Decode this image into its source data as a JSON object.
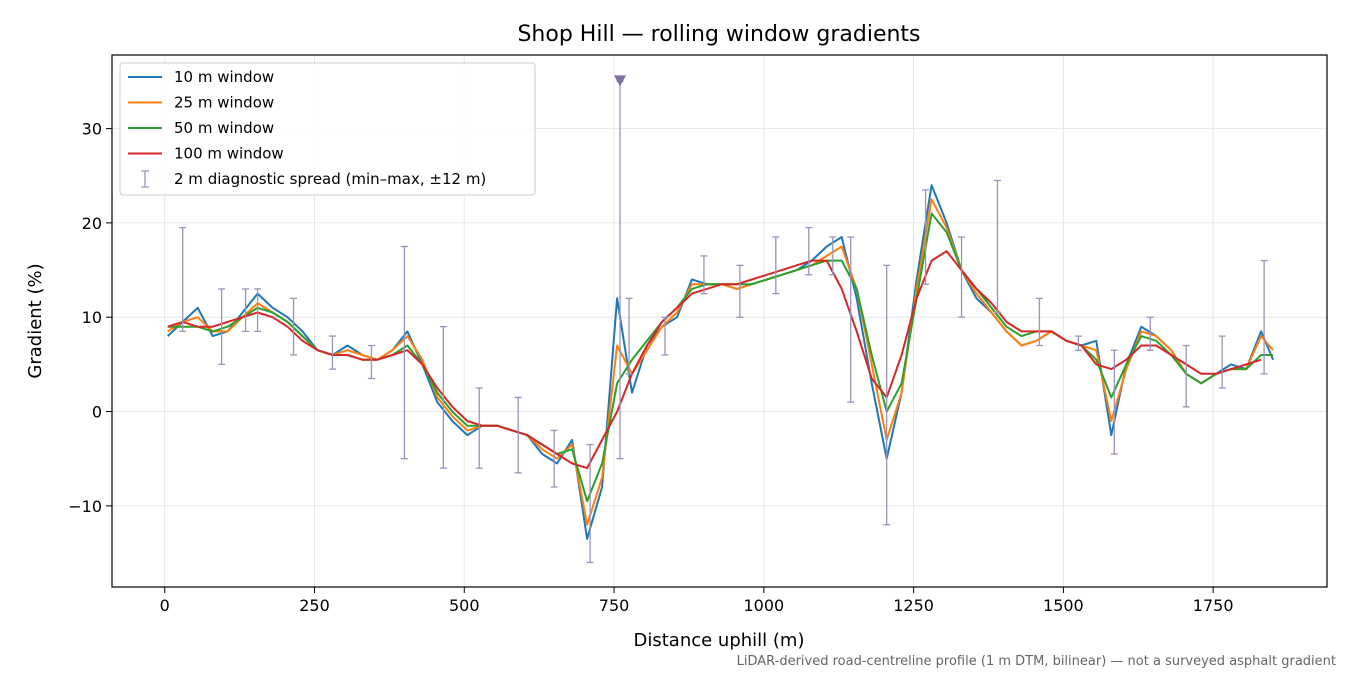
{
  "chart_data": {
    "type": "line",
    "title": "Shop Hill — rolling window gradients",
    "xlabel": "Distance uphill (m)",
    "ylabel": "Gradient (%)",
    "footnote": "LiDAR-derived road-centreline profile (1 m DTM, bilinear) — not a surveyed asphalt gradient",
    "xlim": [
      -88,
      1940
    ],
    "ylim": [
      -18.6,
      37.8
    ],
    "xticks": [
      0,
      250,
      500,
      750,
      1000,
      1250,
      1500,
      1750
    ],
    "xtick_labels": [
      "0",
      "250",
      "500",
      "750",
      "1000",
      "1250",
      "1500",
      "1750"
    ],
    "yticks": [
      -10,
      0,
      10,
      20,
      30
    ],
    "ytick_labels": [
      "−10",
      "0",
      "10",
      "20",
      "30"
    ],
    "grid": true,
    "legend_position": "upper-left",
    "x": [
      5,
      30,
      55,
      80,
      105,
      130,
      155,
      180,
      205,
      230,
      255,
      280,
      305,
      330,
      355,
      380,
      405,
      430,
      455,
      480,
      505,
      530,
      555,
      580,
      605,
      630,
      655,
      680,
      705,
      730,
      755,
      780,
      805,
      830,
      855,
      880,
      905,
      930,
      955,
      980,
      1005,
      1030,
      1055,
      1080,
      1105,
      1130,
      1155,
      1180,
      1205,
      1230,
      1255,
      1280,
      1305,
      1330,
      1355,
      1380,
      1405,
      1430,
      1455,
      1480,
      1505,
      1530,
      1555,
      1580,
      1605,
      1630,
      1655,
      1680,
      1705,
      1730,
      1755,
      1780,
      1805,
      1830,
      1850
    ],
    "series": [
      {
        "name": "10 m window",
        "color": "#1f77b4",
        "values": [
          8,
          9.5,
          11,
          8,
          8.5,
          10.5,
          12.5,
          11,
          10,
          8.5,
          6.5,
          6,
          7,
          6,
          5.5,
          6.5,
          8.5,
          5,
          1,
          -1,
          -2.5,
          -1.5,
          -1.5,
          -2,
          -2.5,
          -4.5,
          -5.5,
          -3,
          -13.5,
          -8,
          12,
          2,
          7,
          9,
          10,
          14,
          13.5,
          13.5,
          13,
          13.5,
          14,
          14.5,
          15,
          16,
          17.5,
          18.5,
          12,
          3,
          -5,
          2,
          14,
          24,
          20,
          15,
          12,
          10.5,
          8.5,
          7,
          7.5,
          8.5,
          7.5,
          7,
          7.5,
          -2.5,
          5,
          9,
          8,
          6.5,
          4,
          3,
          4,
          5,
          4.5,
          8.5,
          5.5
        ]
      },
      {
        "name": "25 m window",
        "color": "#ff7f0e",
        "values": [
          8.5,
          9.5,
          10,
          8.5,
          8.5,
          10,
          11.5,
          10.5,
          9.5,
          8,
          6.5,
          6,
          6.5,
          6,
          5.5,
          6.5,
          8,
          5.5,
          1.5,
          -0.5,
          -2,
          -1.5,
          -1.5,
          -2,
          -2.5,
          -4,
          -5,
          -3.5,
          -12,
          -7,
          7,
          4,
          6.5,
          9,
          10.5,
          13.5,
          13.5,
          13.5,
          13,
          13.5,
          14,
          14.5,
          15,
          15.5,
          16.5,
          17.5,
          13,
          5,
          -3,
          2,
          13,
          22.5,
          19.5,
          15,
          12.5,
          10.5,
          8.5,
          7,
          7.5,
          8.5,
          7.5,
          7,
          6.5,
          -1,
          4.5,
          8.5,
          8,
          6.5,
          4,
          3,
          4,
          4.5,
          4.5,
          8,
          6.5
        ]
      },
      {
        "name": "50 m window",
        "color": "#2ca02c",
        "values": [
          9,
          9,
          9,
          8.5,
          9,
          10,
          11,
          10.5,
          9.5,
          8,
          6.5,
          6,
          6,
          5.5,
          5.5,
          6,
          7,
          5,
          2,
          0,
          -1.5,
          -1.5,
          -1.5,
          -2,
          -2.5,
          -3.5,
          -4.5,
          -4,
          -9.5,
          -5.5,
          3,
          5.5,
          7.5,
          9.5,
          11,
          13,
          13.5,
          13.5,
          13.5,
          13.5,
          14,
          14.5,
          15,
          15.5,
          16,
          16,
          13,
          6,
          0,
          3,
          12,
          21,
          19,
          15,
          13,
          11,
          9,
          8,
          8.5,
          8.5,
          7.5,
          7,
          5.5,
          1.5,
          5,
          8,
          7.5,
          6,
          4,
          3,
          4,
          4.5,
          4.5,
          6,
          6
        ]
      },
      {
        "name": "100 m window",
        "color": "#d62728",
        "values": [
          9,
          9.5,
          9,
          9,
          9.5,
          10,
          10.5,
          10,
          9,
          7.5,
          6.5,
          6,
          6,
          5.5,
          5.5,
          6,
          6.5,
          5,
          2.5,
          0.5,
          -1,
          -1.5,
          -1.5,
          -2,
          -2.5,
          -3.5,
          -4.5,
          -5.5,
          -6,
          -3,
          0,
          4,
          7,
          9.5,
          11,
          12.5,
          13,
          13.5,
          13.5,
          14,
          14.5,
          15,
          15.5,
          16,
          16,
          13,
          8.5,
          3.5,
          1.5,
          6,
          12,
          16,
          17,
          15,
          13,
          11.5,
          9.5,
          8.5,
          8.5,
          8.5,
          7.5,
          7,
          5,
          4.5,
          5.5,
          7,
          7,
          6,
          5,
          4,
          4,
          4.5,
          5,
          5.5,
          null
        ]
      }
    ],
    "error_bars": {
      "name": "2 m diagnostic spread (min–max, ±12 m)",
      "color": "#9b93bc",
      "x": [
        30,
        95,
        135,
        155,
        215,
        280,
        345,
        400,
        465,
        525,
        590,
        650,
        710,
        760,
        775,
        835,
        900,
        960,
        1020,
        1075,
        1115,
        1145,
        1205,
        1270,
        1330,
        1390,
        1460,
        1525,
        1585,
        1645,
        1705,
        1765,
        1835
      ],
      "low": [
        8.5,
        5,
        8.5,
        8.5,
        6,
        4.5,
        3.5,
        -5,
        -6,
        -6,
        -6.5,
        -8,
        -16,
        -5,
        4,
        6,
        12.5,
        10,
        12.5,
        14.5,
        14.5,
        1,
        -12,
        13.5,
        10,
        10.5,
        7,
        6.5,
        -4.5,
        6.5,
        0.5,
        2.5,
        4
      ],
      "high": [
        19.5,
        13,
        13,
        13,
        12,
        8,
        7,
        17.5,
        9,
        2.5,
        1.5,
        -2,
        -3.5,
        35,
        12,
        10,
        16.5,
        15.5,
        18.5,
        19.5,
        18.5,
        18.5,
        15.5,
        23.5,
        18.5,
        24.5,
        12,
        8,
        6.5,
        10,
        7,
        8,
        16
      ],
      "outlier_marker_x": 760,
      "outlier_marker_y": 35
    }
  }
}
